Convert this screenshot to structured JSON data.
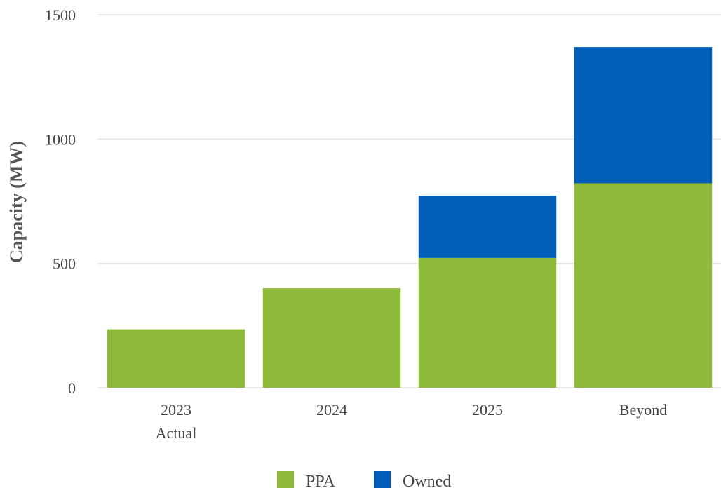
{
  "chart_data": {
    "type": "bar",
    "stacked": true,
    "categories": [
      [
        "2023",
        "Actual"
      ],
      [
        "2024"
      ],
      [
        "2025"
      ],
      [
        "Beyond"
      ]
    ],
    "series": [
      {
        "name": "PPA",
        "color": "#8dba39",
        "values": [
          235,
          400,
          522,
          822
        ]
      },
      {
        "name": "Owned",
        "color": "#005eb8",
        "values": [
          0,
          0,
          250,
          548
        ]
      }
    ],
    "ylabel": "Capacity (MW)",
    "xlabel": "",
    "ylim": [
      0,
      1500
    ],
    "yticks": [
      0,
      500,
      1000,
      1500
    ],
    "grid": true,
    "legend": "bottom-center"
  }
}
